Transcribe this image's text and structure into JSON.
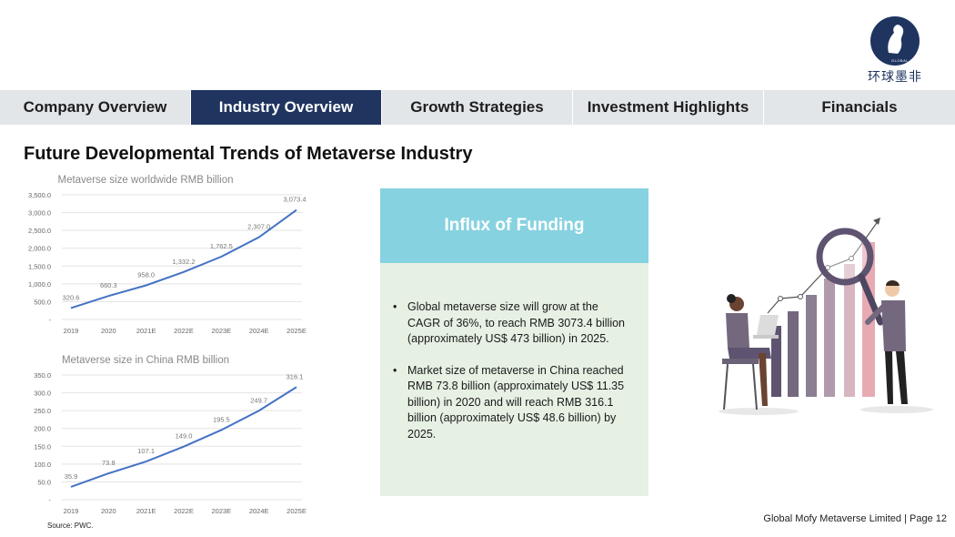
{
  "logo": {
    "sub_text": "GLOBAL MOFY",
    "cn_text": "环球墨非"
  },
  "nav": {
    "tabs": [
      {
        "label": "Company Overview",
        "active": false
      },
      {
        "label": "Industry Overview",
        "active": true
      },
      {
        "label": "Growth Strategies",
        "active": false
      },
      {
        "label": "Investment Highlights",
        "active": false
      },
      {
        "label": "Financials",
        "active": false
      }
    ]
  },
  "page": {
    "title": "Future Developmental Trends of Metaverse Industry"
  },
  "chart_data": [
    {
      "type": "line",
      "title": "Metaverse size worldwide RMB billion",
      "categories": [
        "2019",
        "2020",
        "2021E",
        "2022E",
        "2023E",
        "2024E",
        "2025E"
      ],
      "values": [
        320.6,
        660.3,
        958.0,
        1332.2,
        1762.5,
        2307.0,
        3073.4
      ],
      "data_labels": [
        "320.6",
        "660.3",
        "958.0",
        "1,332.2",
        "1,762.5",
        "2,307.0",
        "3,073.4"
      ],
      "ylim": [
        0,
        3500
      ],
      "yticks": [
        0,
        500,
        1000,
        1500,
        2000,
        2500,
        3000,
        3500
      ],
      "ytick_labels": [
        "-",
        "500.0",
        "1,000.0",
        "1,500.0",
        "2,000.0",
        "2,500.0",
        "3,000.0",
        "3,500.0"
      ],
      "grid": true,
      "color": "#4472c4"
    },
    {
      "type": "line",
      "title": "Metaverse size in China RMB billion",
      "categories": [
        "2019",
        "2020",
        "2021E",
        "2022E",
        "2023E",
        "2024E",
        "2025E"
      ],
      "values": [
        35.9,
        73.8,
        107.1,
        149.0,
        195.5,
        249.7,
        316.1
      ],
      "data_labels": [
        "35.9",
        "73.8",
        "107.1",
        "149.0",
        "195.5",
        "249.7",
        "316.1"
      ],
      "ylim": [
        0,
        350
      ],
      "yticks": [
        0,
        50,
        100,
        150,
        200,
        250,
        300,
        350
      ],
      "ytick_labels": [
        "-",
        "50.0",
        "100.0",
        "150.0",
        "200.0",
        "250.0",
        "300.0",
        "350.0"
      ],
      "grid": true,
      "color": "#4472c4"
    }
  ],
  "funding": {
    "title": "Influx of Funding",
    "bullets": [
      "Global metaverse size will grow at the CAGR of 36%, to reach RMB 3073.4 billion (approximately US$ 473 billion) in 2025.",
      "Market size of metaverse in China reached RMB 73.8 billion (approximately US$ 11.35 billion) in 2020 and will reach RMB 316.1 billion (approximately US$ 48.6 billion) by 2025."
    ]
  },
  "source": "Source: PWC.",
  "footer": "Global Mofy Metaverse Limited | Page 12",
  "colors": {
    "navy": "#1f3560",
    "tab_bg": "#e3e6e8",
    "header_cyan": "#87d2e0",
    "body_green": "#e6f0e3"
  }
}
